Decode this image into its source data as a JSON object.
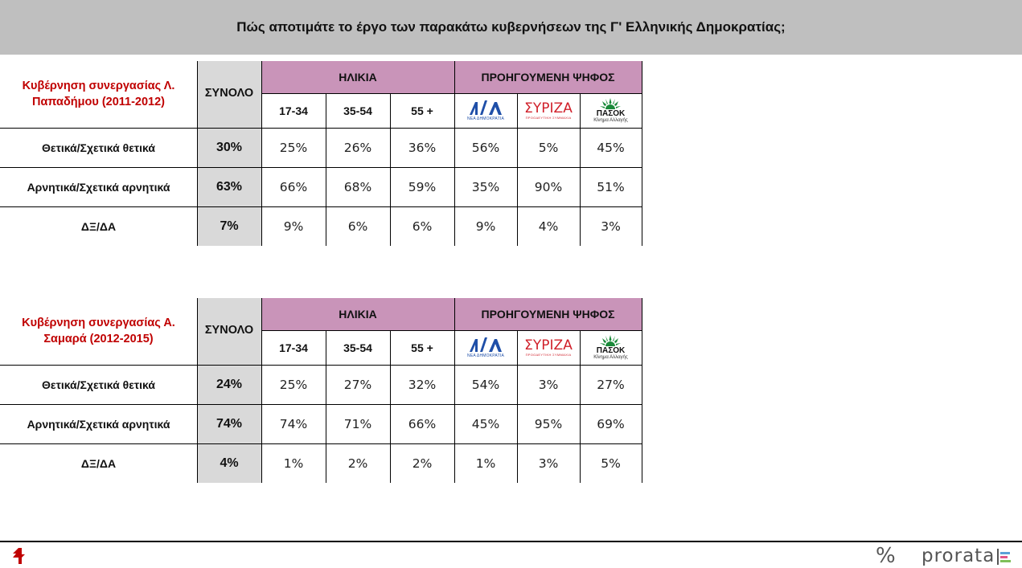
{
  "header": {
    "title": "Πώς αποτιμάτε το έργο των παρακάτω κυβερνήσεων της Γ' Ελληνικής Δημοκρατίας;"
  },
  "columns": {
    "total_label": "ΣΥΝΟΛΟ",
    "age_group_label": "ΗΛΙΚΙΑ",
    "vote_group_label": "ΠΡΟΗΓΟΥΜΕΝΗ ΨΗΦΟΣ",
    "ages": [
      "17-34",
      "35-54",
      "55 +"
    ],
    "parties": [
      {
        "name": "ΝΔ",
        "logo_icon": "nd-logo-icon",
        "logo_caption": "ΝΕΑ ΔΗΜΟΚΡΑΤΙΑ",
        "color": "#1f4fa8"
      },
      {
        "name": "ΣΥΡΙΖΑ",
        "logo_icon": "syriza-logo-icon",
        "logo_text": "ΣΥΡΙΖΑ",
        "logo_caption": "ΠΡΟΟΔΕΥΤΙΚΗ ΣΥΜΜΑΧΙΑ",
        "color": "#d0202a"
      },
      {
        "name": "ΠΑΣΟΚ",
        "logo_icon": "pasok-logo-icon",
        "logo_text": "ΠΑΣΟΚ",
        "logo_caption": "Κίνημα Αλλαγής",
        "color": "#1a8a3a"
      }
    ]
  },
  "colors": {
    "header_bg": "#bfbfbf",
    "group_header_bg": "#c994b9",
    "total_bg": "#d9d9d9",
    "title_red": "#c00000"
  },
  "chart_data": [
    {
      "type": "table",
      "title": "Κυβέρνηση συνεργασίας Λ. Παπαδήμου (2011-2012)",
      "rows": [
        {
          "label": "Θετικά/Σχετικά θετικά",
          "total": "30%",
          "ages": [
            "25%",
            "26%",
            "36%"
          ],
          "parties": [
            "56%",
            "5%",
            "45%"
          ]
        },
        {
          "label": "Αρνητικά/Σχετικά αρνητικά",
          "total": "63%",
          "ages": [
            "66%",
            "68%",
            "59%"
          ],
          "parties": [
            "35%",
            "90%",
            "51%"
          ]
        },
        {
          "label": "ΔΞ/ΔΑ",
          "total": "7%",
          "ages": [
            "9%",
            "6%",
            "6%"
          ],
          "parties": [
            "9%",
            "4%",
            "3%"
          ]
        }
      ]
    },
    {
      "type": "table",
      "title": "Κυβέρνηση συνεργασίας Α. Σαμαρά (2012-2015)",
      "rows": [
        {
          "label": "Θετικά/Σχετικά θετικά",
          "total": "24%",
          "ages": [
            "25%",
            "27%",
            "32%"
          ],
          "parties": [
            "54%",
            "3%",
            "27%"
          ]
        },
        {
          "label": "Αρνητικά/Σχετικά αρνητικά",
          "total": "74%",
          "ages": [
            "74%",
            "71%",
            "66%"
          ],
          "parties": [
            "45%",
            "95%",
            "69%"
          ]
        },
        {
          "label": "ΔΞ/ΔΑ",
          "total": "4%",
          "ages": [
            "1%",
            "2%",
            "2%"
          ],
          "parties": [
            "1%",
            "3%",
            "5%"
          ]
        }
      ]
    }
  ],
  "footer": {
    "left_logo_icon": "institute-logo-icon",
    "percent_icon": "percent-icon",
    "brand": "prorata",
    "brand_icon": "prorata-bars-icon"
  }
}
